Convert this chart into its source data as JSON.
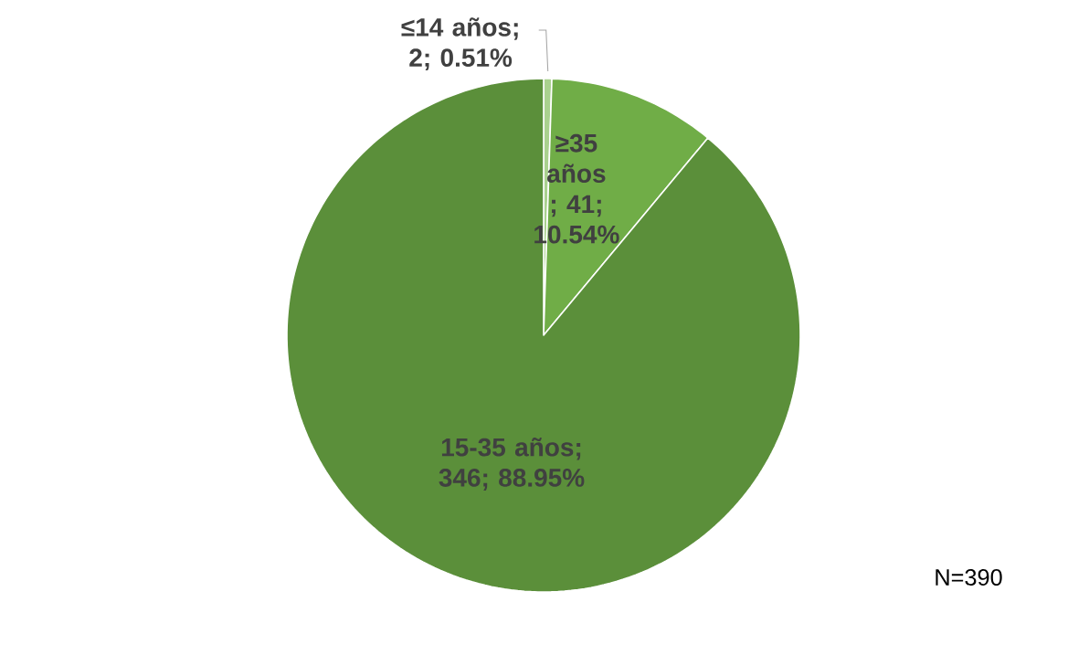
{
  "chart_data": {
    "type": "pie",
    "categories": [
      "≤14 años",
      "≥35 años",
      "15-35 años"
    ],
    "values": [
      2,
      41,
      346
    ],
    "colors": [
      "#a9d18e",
      "#70ad47",
      "#5b8f3a"
    ],
    "value_labels": [
      "; 2; 0.51%",
      " ; 41; 10.54%",
      "; 346; 88.95%"
    ],
    "annotations": [
      "N=390"
    ]
  }
}
